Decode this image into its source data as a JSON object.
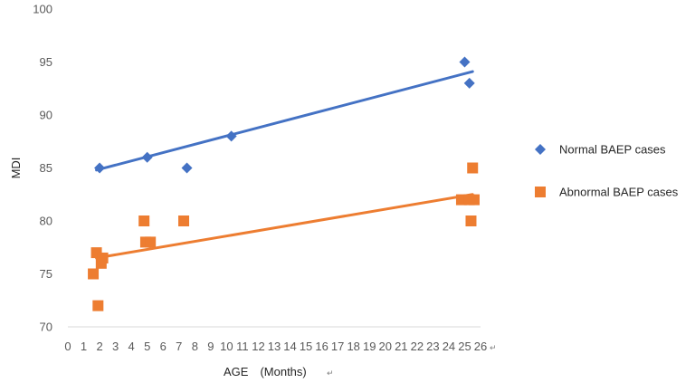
{
  "chart_data": {
    "type": "scatter",
    "title": "",
    "xlabel": "AGE　(Months)",
    "ylabel": "MDI",
    "xlim": [
      0,
      26
    ],
    "ylim": [
      70,
      100
    ],
    "x_ticks": [
      0,
      1,
      2,
      3,
      4,
      5,
      6,
      7,
      8,
      9,
      10,
      11,
      12,
      13,
      14,
      15,
      16,
      17,
      18,
      19,
      20,
      21,
      22,
      23,
      24,
      25,
      26
    ],
    "y_ticks": [
      70,
      75,
      80,
      85,
      90,
      95,
      100
    ],
    "grid": false,
    "legend_position": "right",
    "series": [
      {
        "name": "Normal BAEP cases",
        "marker": "diamond",
        "color": "#4472C4",
        "x": [
          2,
          5,
          7.5,
          10.3,
          25,
          25.3
        ],
        "y": [
          85,
          86,
          85,
          88,
          95,
          93
        ],
        "trendline": {
          "x": [
            1.8,
            25.5
          ],
          "y": [
            84.8,
            94.1
          ]
        }
      },
      {
        "name": "Abnormal BAEP cases",
        "marker": "square",
        "color": "#ED7D31",
        "x": [
          1.6,
          1.8,
          1.9,
          2.1,
          2.2,
          4.8,
          4.9,
          5.2,
          7.3,
          24.8,
          25.3,
          25.4,
          25.5,
          25.6
        ],
        "y": [
          75,
          77,
          72,
          76,
          76.5,
          80,
          78,
          78,
          80,
          82,
          82,
          80,
          85,
          82
        ],
        "trendline": {
          "x": [
            1.8,
            25.5
          ],
          "y": [
            76.5,
            82.5
          ]
        }
      }
    ]
  },
  "marks": {
    "x_tick_suffix": "↵",
    "xlabel_suffix": "↵"
  }
}
